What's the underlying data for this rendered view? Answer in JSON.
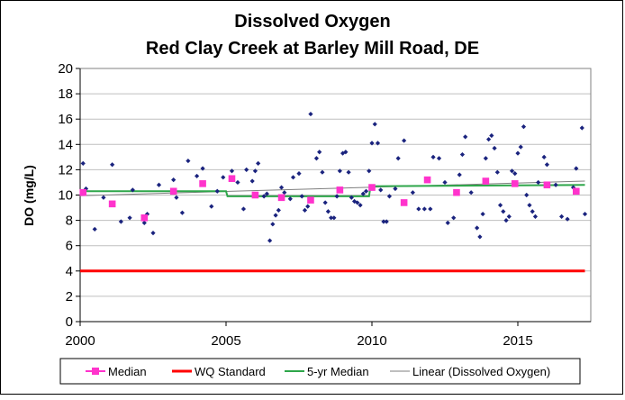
{
  "chart_data": {
    "type": "scatter",
    "title": "Dissolved Oxygen",
    "subtitle": "Red Clay Creek at Barley Mill Road, DE",
    "xlabel": "",
    "ylabel": "DO (mg/L)",
    "xlim": [
      2000,
      2017.5
    ],
    "ylim": [
      0,
      20
    ],
    "x_ticks": [
      2000,
      2005,
      2010,
      2015
    ],
    "x_tick_labels": [
      "2000",
      "2005",
      "2010",
      "2015"
    ],
    "y_ticks": [
      0,
      2,
      4,
      6,
      8,
      10,
      12,
      14,
      16,
      18,
      20
    ],
    "y_tick_labels": [
      "0",
      "2",
      "4",
      "6",
      "8",
      "10",
      "12",
      "14",
      "16",
      "18",
      "20"
    ],
    "grid": "horizontal",
    "legend_position": "bottom",
    "series": [
      {
        "name": "Dissolved Oxygen",
        "kind": "points",
        "color": "#1a237e",
        "points": [
          [
            2000.1,
            12.5
          ],
          [
            2000.2,
            10.5
          ],
          [
            2000.5,
            7.3
          ],
          [
            2000.8,
            9.8
          ],
          [
            2001.1,
            12.4
          ],
          [
            2001.4,
            7.9
          ],
          [
            2001.7,
            8.2
          ],
          [
            2001.8,
            10.4
          ],
          [
            2002.2,
            7.8
          ],
          [
            2002.3,
            8.5
          ],
          [
            2002.5,
            7.0
          ],
          [
            2002.7,
            10.8
          ],
          [
            2003.2,
            11.2
          ],
          [
            2003.3,
            9.8
          ],
          [
            2003.5,
            8.6
          ],
          [
            2003.7,
            12.7
          ],
          [
            2004.0,
            11.5
          ],
          [
            2004.2,
            12.1
          ],
          [
            2004.5,
            9.1
          ],
          [
            2004.7,
            10.3
          ],
          [
            2004.9,
            11.4
          ],
          [
            2005.2,
            11.9
          ],
          [
            2005.4,
            11.0
          ],
          [
            2005.6,
            8.9
          ],
          [
            2005.7,
            12.0
          ],
          [
            2005.9,
            11.1
          ],
          [
            2006.0,
            11.9
          ],
          [
            2006.1,
            12.5
          ],
          [
            2006.3,
            9.9
          ],
          [
            2006.4,
            10.1
          ],
          [
            2006.5,
            6.4
          ],
          [
            2006.6,
            7.7
          ],
          [
            2006.7,
            8.4
          ],
          [
            2006.8,
            8.8
          ],
          [
            2006.9,
            10.6
          ],
          [
            2007.0,
            10.2
          ],
          [
            2007.2,
            9.7
          ],
          [
            2007.3,
            11.4
          ],
          [
            2007.5,
            11.7
          ],
          [
            2007.6,
            9.9
          ],
          [
            2007.7,
            8.8
          ],
          [
            2007.8,
            9.1
          ],
          [
            2007.9,
            16.4
          ],
          [
            2008.1,
            12.9
          ],
          [
            2008.2,
            13.4
          ],
          [
            2008.3,
            11.8
          ],
          [
            2008.4,
            9.4
          ],
          [
            2008.5,
            8.7
          ],
          [
            2008.6,
            8.2
          ],
          [
            2008.7,
            8.2
          ],
          [
            2008.8,
            9.9
          ],
          [
            2008.9,
            11.9
          ],
          [
            2009.0,
            13.3
          ],
          [
            2009.1,
            13.4
          ],
          [
            2009.2,
            11.8
          ],
          [
            2009.3,
            9.8
          ],
          [
            2009.4,
            9.5
          ],
          [
            2009.5,
            9.4
          ],
          [
            2009.6,
            9.2
          ],
          [
            2009.7,
            10.1
          ],
          [
            2009.8,
            10.3
          ],
          [
            2009.9,
            11.9
          ],
          [
            2010.0,
            14.1
          ],
          [
            2010.1,
            15.6
          ],
          [
            2010.2,
            14.1
          ],
          [
            2010.3,
            10.4
          ],
          [
            2010.4,
            7.9
          ],
          [
            2010.5,
            7.9
          ],
          [
            2010.6,
            9.9
          ],
          [
            2010.8,
            10.5
          ],
          [
            2010.9,
            12.9
          ],
          [
            2011.1,
            14.3
          ],
          [
            2011.4,
            10.2
          ],
          [
            2011.6,
            8.9
          ],
          [
            2011.8,
            8.9
          ],
          [
            2012.0,
            8.9
          ],
          [
            2012.1,
            13.0
          ],
          [
            2012.3,
            12.9
          ],
          [
            2012.5,
            11.0
          ],
          [
            2012.6,
            7.8
          ],
          [
            2012.8,
            8.2
          ],
          [
            2013.0,
            11.6
          ],
          [
            2013.1,
            13.2
          ],
          [
            2013.2,
            14.6
          ],
          [
            2013.4,
            10.2
          ],
          [
            2013.6,
            7.4
          ],
          [
            2013.7,
            6.7
          ],
          [
            2013.8,
            8.5
          ],
          [
            2013.9,
            12.9
          ],
          [
            2014.0,
            14.4
          ],
          [
            2014.1,
            14.7
          ],
          [
            2014.2,
            13.7
          ],
          [
            2014.3,
            11.8
          ],
          [
            2014.4,
            9.2
          ],
          [
            2014.5,
            8.7
          ],
          [
            2014.6,
            8.0
          ],
          [
            2014.7,
            8.3
          ],
          [
            2014.8,
            11.9
          ],
          [
            2014.9,
            11.7
          ],
          [
            2015.0,
            13.3
          ],
          [
            2015.1,
            13.8
          ],
          [
            2015.2,
            15.4
          ],
          [
            2015.3,
            10.0
          ],
          [
            2015.4,
            9.2
          ],
          [
            2015.5,
            8.7
          ],
          [
            2015.6,
            8.3
          ],
          [
            2015.7,
            11.0
          ],
          [
            2015.9,
            13.0
          ],
          [
            2016.0,
            12.4
          ],
          [
            2016.3,
            10.8
          ],
          [
            2016.5,
            8.3
          ],
          [
            2016.7,
            8.1
          ],
          [
            2016.9,
            10.6
          ],
          [
            2017.0,
            12.1
          ],
          [
            2017.2,
            15.3
          ],
          [
            2017.3,
            8.5
          ]
        ]
      },
      {
        "name": "Median",
        "kind": "squares",
        "color": "#ff33cc",
        "points": [
          [
            2000.1,
            10.2
          ],
          [
            2001.1,
            9.3
          ],
          [
            2002.2,
            8.2
          ],
          [
            2003.2,
            10.3
          ],
          [
            2004.2,
            10.9
          ],
          [
            2005.2,
            11.3
          ],
          [
            2006.0,
            10.0
          ],
          [
            2006.9,
            9.8
          ],
          [
            2007.9,
            9.6
          ],
          [
            2008.9,
            10.4
          ],
          [
            2010.0,
            10.6
          ],
          [
            2011.1,
            9.4
          ],
          [
            2011.9,
            11.2
          ],
          [
            2012.9,
            10.2
          ],
          [
            2013.9,
            11.1
          ],
          [
            2014.9,
            10.9
          ],
          [
            2016.0,
            10.8
          ],
          [
            2017.0,
            10.3
          ]
        ]
      },
      {
        "name": "WQ Standard",
        "kind": "line",
        "color": "#ff0000",
        "points": [
          [
            2000.0,
            4.0
          ],
          [
            2017.3,
            4.0
          ]
        ]
      },
      {
        "name": "5-yr Median",
        "kind": "line",
        "color": "#2ea64a",
        "points": [
          [
            2000.0,
            10.3
          ],
          [
            2005.0,
            10.3
          ],
          [
            2005.05,
            9.9
          ],
          [
            2009.9,
            9.9
          ],
          [
            2009.95,
            10.7
          ],
          [
            2017.3,
            10.8
          ]
        ]
      },
      {
        "name": "Linear (Dissolved Oxygen)",
        "kind": "line",
        "color": "#7f7f7f",
        "points": [
          [
            2000.0,
            9.95
          ],
          [
            2017.3,
            11.1
          ]
        ]
      }
    ],
    "legend": [
      {
        "label": "Median",
        "symbol": "square-line",
        "color": "#ff33cc"
      },
      {
        "label": "WQ Standard",
        "symbol": "line",
        "color": "#ff0000"
      },
      {
        "label": "5-yr Median",
        "symbol": "line",
        "color": "#2ea64a"
      },
      {
        "label": "Linear (Dissolved Oxygen)",
        "symbol": "line",
        "color": "#7f7f7f"
      }
    ]
  }
}
